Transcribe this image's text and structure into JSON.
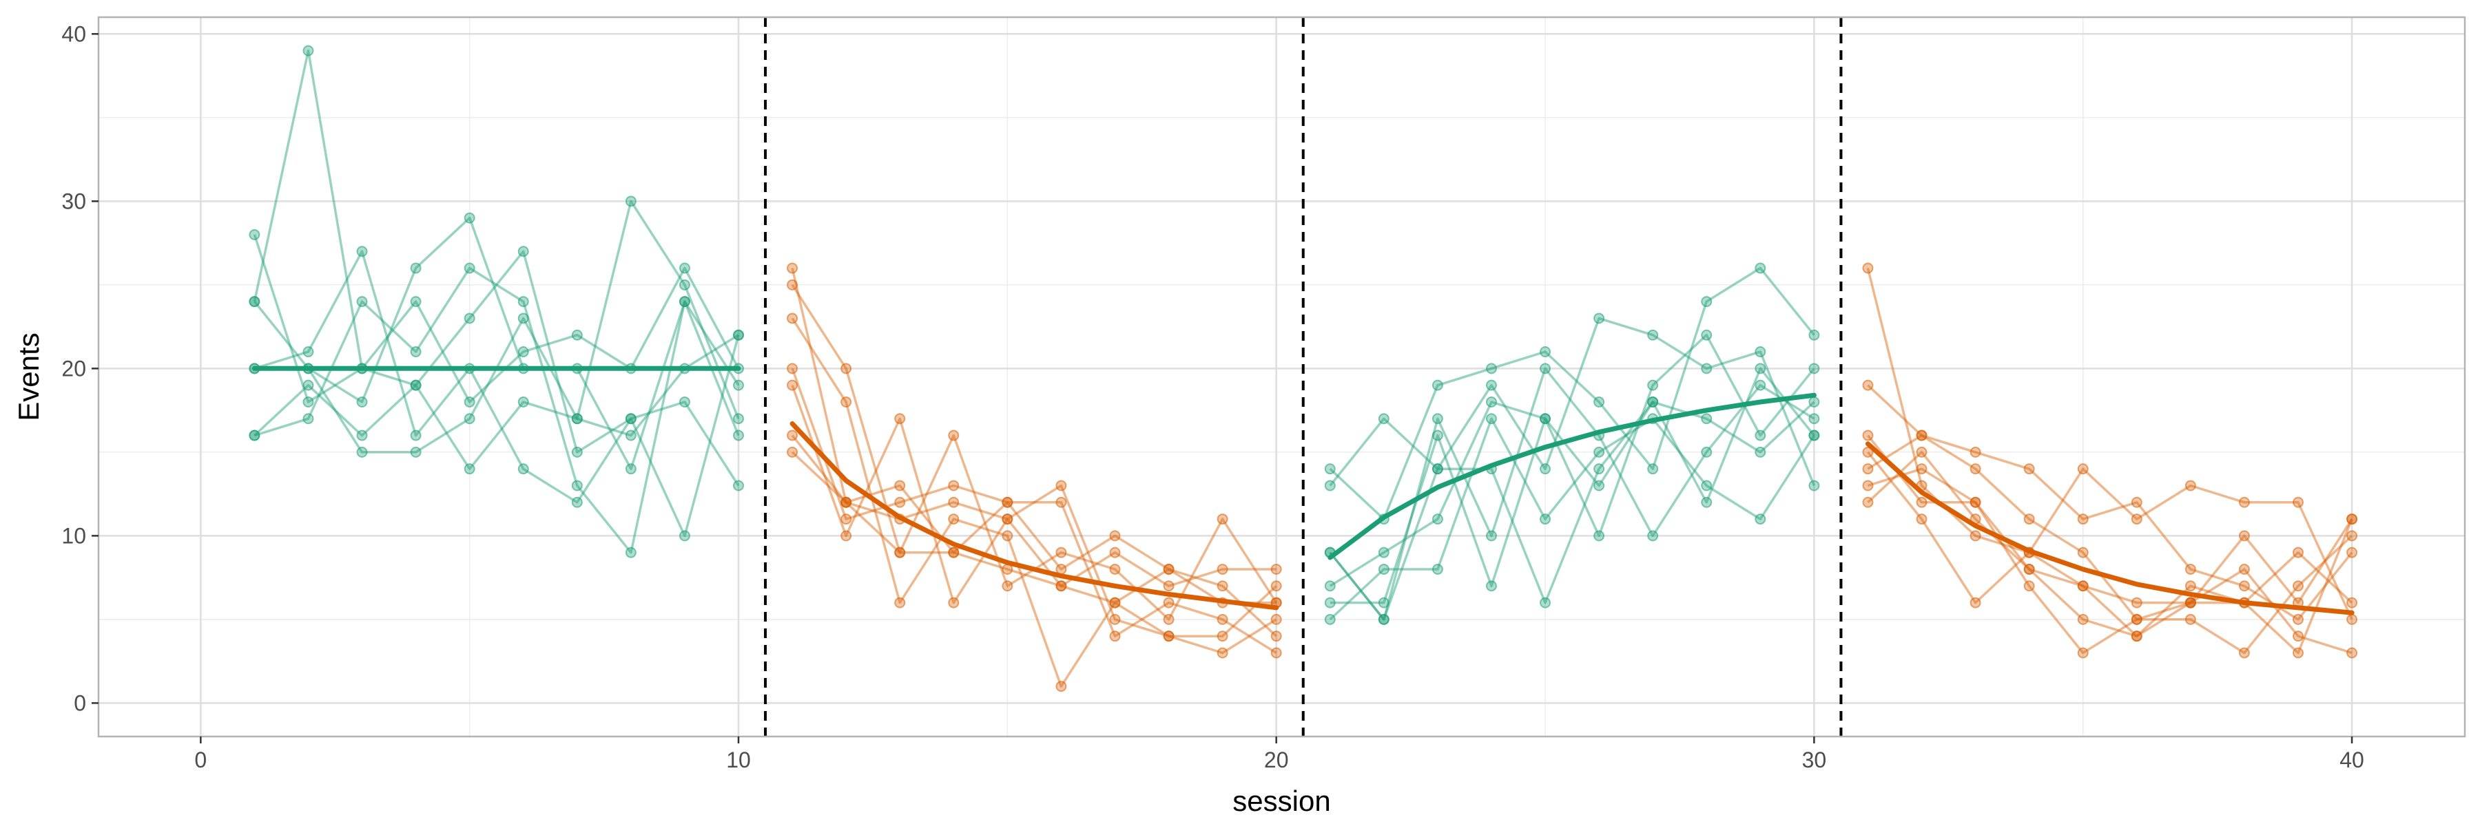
{
  "chart_data": {
    "type": "line",
    "title": "",
    "xlabel": "session",
    "ylabel": "Events",
    "xlim": [
      -1.9,
      42.1
    ],
    "ylim": [
      -2,
      41
    ],
    "xticks": [
      0,
      10,
      20,
      30,
      40
    ],
    "yticks": [
      0,
      10,
      20,
      30,
      40
    ],
    "grid": true,
    "legend": "none",
    "colors": {
      "green": "#1b9e77",
      "orange": "#d95f02",
      "panel_border": "#b3b3b3",
      "grid": "#ebebeb"
    },
    "phase_boundaries": [
      10.5,
      20.5,
      30.5
    ],
    "series": [
      {
        "group": "green",
        "x": [
          1,
          2,
          3,
          4,
          5,
          6,
          7,
          8,
          9,
          10
        ],
        "values": [
          28,
          18,
          20,
          19,
          14,
          18,
          17,
          30,
          25,
          17
        ]
      },
      {
        "group": "green",
        "x": [
          1,
          2,
          3,
          4,
          5,
          6,
          7,
          8,
          9,
          10
        ],
        "values": [
          24,
          39,
          20,
          24,
          18,
          21,
          22,
          20,
          26,
          20
        ]
      },
      {
        "group": "green",
        "x": [
          1,
          2,
          3,
          4,
          5,
          6,
          7,
          8,
          9,
          10
        ],
        "values": [
          20,
          21,
          27,
          16,
          20,
          14,
          12,
          17,
          10,
          22
        ]
      },
      {
        "group": "green",
        "x": [
          1,
          2,
          3,
          4,
          5,
          6,
          7,
          8,
          9,
          10
        ],
        "values": [
          16,
          17,
          24,
          21,
          26,
          24,
          13,
          9,
          24,
          16
        ]
      },
      {
        "group": "green",
        "x": [
          1,
          2,
          3,
          4,
          5,
          6,
          7,
          8,
          9,
          10
        ],
        "values": [
          16,
          19,
          16,
          19,
          23,
          27,
          15,
          17,
          18,
          13
        ]
      },
      {
        "group": "green",
        "x": [
          1,
          2,
          3,
          4,
          5,
          6,
          7,
          8,
          9,
          10
        ],
        "values": [
          20,
          20,
          18,
          26,
          29,
          20,
          20,
          14,
          24,
          19
        ]
      },
      {
        "group": "green",
        "x": [
          1,
          2,
          3,
          4,
          5,
          6,
          7,
          8,
          9,
          10
        ],
        "values": [
          24,
          20,
          15,
          15,
          17,
          23,
          17,
          16,
          20,
          22
        ]
      },
      {
        "group": "orange",
        "x": [
          11,
          12,
          13,
          14,
          15,
          16,
          17,
          18,
          19,
          20
        ],
        "values": [
          26,
          12,
          13,
          9,
          12,
          12,
          4,
          6,
          5,
          3
        ]
      },
      {
        "group": "orange",
        "x": [
          11,
          12,
          13,
          14,
          15,
          16,
          17,
          18,
          19,
          20
        ],
        "values": [
          25,
          20,
          9,
          16,
          7,
          9,
          8,
          5,
          11,
          6
        ]
      },
      {
        "group": "orange",
        "x": [
          11,
          12,
          13,
          14,
          15,
          16,
          17,
          18,
          19,
          20
        ],
        "values": [
          23,
          18,
          6,
          11,
          10,
          1,
          6,
          4,
          3,
          5
        ]
      },
      {
        "group": "orange",
        "x": [
          11,
          12,
          13,
          14,
          15,
          16,
          17,
          18,
          19,
          20
        ],
        "values": [
          20,
          11,
          12,
          13,
          12,
          8,
          10,
          8,
          7,
          4
        ]
      },
      {
        "group": "orange",
        "x": [
          11,
          12,
          13,
          14,
          15,
          16,
          17,
          18,
          19,
          20
        ],
        "values": [
          19,
          10,
          17,
          6,
          11,
          7,
          9,
          7,
          8,
          8
        ]
      },
      {
        "group": "orange",
        "x": [
          11,
          12,
          13,
          14,
          15,
          16,
          17,
          18,
          19,
          20
        ],
        "values": [
          16,
          12,
          11,
          12,
          11,
          13,
          5,
          4,
          4,
          7
        ]
      },
      {
        "group": "orange",
        "x": [
          11,
          12,
          13,
          14,
          15,
          16,
          17,
          18,
          19,
          20
        ],
        "values": [
          15,
          12,
          9,
          9,
          8,
          7,
          6,
          8,
          6,
          6
        ]
      },
      {
        "group": "green",
        "x": [
          21,
          22,
          23,
          24,
          25,
          26,
          27,
          28,
          29,
          30
        ],
        "values": [
          14,
          11,
          19,
          20,
          21,
          18,
          14,
          24,
          26,
          22
        ]
      },
      {
        "group": "green",
        "x": [
          21,
          22,
          23,
          24,
          25,
          26,
          27,
          28,
          29,
          30
        ],
        "values": [
          13,
          17,
          14,
          19,
          14,
          23,
          22,
          20,
          21,
          13
        ]
      },
      {
        "group": "green",
        "x": [
          21,
          22,
          23,
          24,
          25,
          26,
          27,
          28,
          29,
          30
        ],
        "values": [
          9,
          5,
          17,
          10,
          20,
          16,
          10,
          15,
          19,
          17
        ]
      },
      {
        "group": "green",
        "x": [
          21,
          22,
          23,
          24,
          25,
          26,
          27,
          28,
          29,
          30
        ],
        "values": [
          7,
          9,
          11,
          18,
          17,
          10,
          19,
          22,
          16,
          20
        ]
      },
      {
        "group": "green",
        "x": [
          21,
          22,
          23,
          24,
          25,
          26,
          27,
          28,
          29,
          30
        ],
        "values": [
          6,
          6,
          16,
          7,
          17,
          13,
          18,
          12,
          20,
          16
        ]
      },
      {
        "group": "green",
        "x": [
          21,
          22,
          23,
          24,
          25,
          26,
          27,
          28,
          29,
          30
        ],
        "values": [
          5,
          8,
          8,
          17,
          11,
          15,
          17,
          13,
          11,
          16
        ]
      },
      {
        "group": "green",
        "x": [
          21,
          22,
          23,
          24,
          25,
          26,
          27,
          28,
          29,
          30
        ],
        "values": [
          9,
          5,
          14,
          14,
          6,
          14,
          18,
          17,
          15,
          18
        ]
      },
      {
        "group": "orange",
        "x": [
          31,
          32,
          33,
          34,
          35,
          36,
          37,
          38,
          39,
          40
        ],
        "values": [
          26,
          13,
          10,
          9,
          14,
          11,
          13,
          12,
          12,
          5
        ]
      },
      {
        "group": "orange",
        "x": [
          31,
          32,
          33,
          34,
          35,
          36,
          37,
          38,
          39,
          40
        ],
        "values": [
          19,
          16,
          15,
          14,
          11,
          12,
          8,
          7,
          5,
          9
        ]
      },
      {
        "group": "orange",
        "x": [
          31,
          32,
          33,
          34,
          35,
          36,
          37,
          38,
          39,
          40
        ],
        "values": [
          16,
          12,
          12,
          7,
          3,
          5,
          6,
          10,
          6,
          11
        ]
      },
      {
        "group": "orange",
        "x": [
          31,
          32,
          33,
          34,
          35,
          36,
          37,
          38,
          39,
          40
        ],
        "values": [
          15,
          11,
          6,
          9,
          7,
          6,
          6,
          8,
          4,
          3
        ]
      },
      {
        "group": "orange",
        "x": [
          31,
          32,
          33,
          34,
          35,
          36,
          37,
          38,
          39,
          40
        ],
        "values": [
          14,
          16,
          14,
          11,
          9,
          5,
          5,
          3,
          7,
          10
        ]
      },
      {
        "group": "orange",
        "x": [
          31,
          32,
          33,
          34,
          35,
          36,
          37,
          38,
          39,
          40
        ],
        "values": [
          13,
          14,
          12,
          8,
          5,
          4,
          6,
          6,
          9,
          6
        ]
      },
      {
        "group": "orange",
        "x": [
          31,
          32,
          33,
          34,
          35,
          36,
          37,
          38,
          39,
          40
        ],
        "values": [
          12,
          15,
          11,
          8,
          7,
          4,
          7,
          6,
          3,
          11
        ]
      }
    ],
    "fits": [
      {
        "group": "green",
        "x": [
          1,
          2,
          3,
          4,
          5,
          6,
          7,
          8,
          9,
          10
        ],
        "values": [
          20,
          20,
          20,
          20,
          20,
          20,
          20,
          20,
          20,
          20
        ]
      },
      {
        "group": "orange",
        "x": [
          11,
          12,
          13,
          14,
          15,
          16,
          17,
          18,
          19,
          20
        ],
        "values": [
          16.7,
          13.3,
          11.1,
          9.5,
          8.4,
          7.6,
          7.0,
          6.5,
          6.1,
          5.7
        ]
      },
      {
        "group": "green",
        "x": [
          21,
          22,
          23,
          24,
          25,
          26,
          27,
          28,
          29,
          30
        ],
        "values": [
          8.7,
          11.1,
          12.9,
          14.2,
          15.3,
          16.2,
          16.9,
          17.5,
          18.0,
          18.4
        ]
      },
      {
        "group": "orange",
        "x": [
          31,
          32,
          33,
          34,
          35,
          36,
          37,
          38,
          39,
          40
        ],
        "values": [
          15.5,
          12.6,
          10.6,
          9.1,
          8.0,
          7.1,
          6.5,
          6.0,
          5.7,
          5.4
        ]
      }
    ]
  }
}
